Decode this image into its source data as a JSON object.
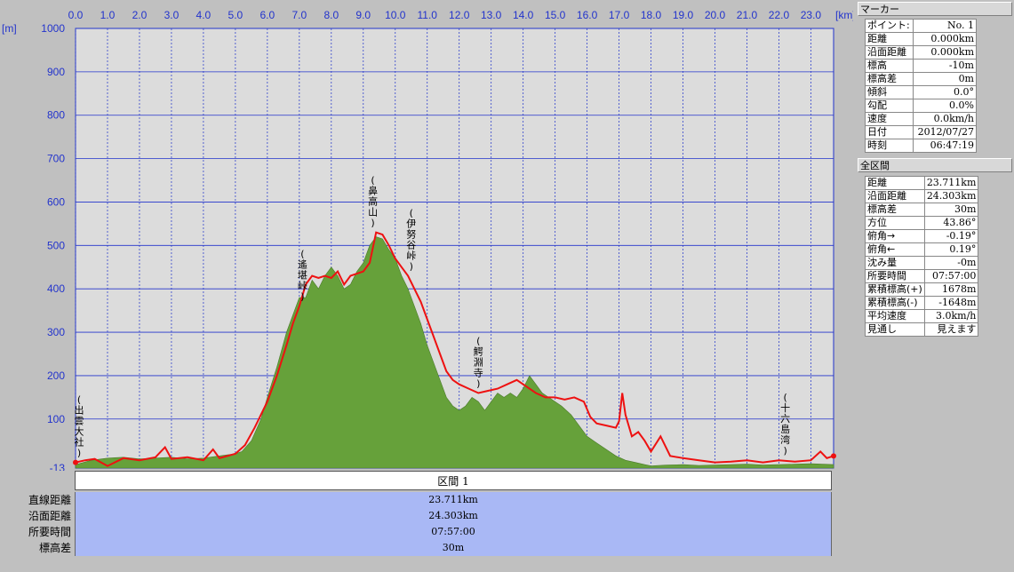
{
  "chart_data": {
    "type": "area",
    "x_unit": "[km]",
    "y_unit": "[m]",
    "xlim": [
      0,
      23.711
    ],
    "ylim": [
      -13,
      1000
    ],
    "x_ticks": [
      "0.0",
      "1.0",
      "2.0",
      "3.0",
      "4.0",
      "5.0",
      "6.0",
      "7.0",
      "8.0",
      "9.0",
      "10.0",
      "11.0",
      "12.0",
      "13.0",
      "14.0",
      "15.0",
      "16.0",
      "17.0",
      "18.0",
      "19.0",
      "20.0",
      "21.0",
      "22.0",
      "23.0"
    ],
    "y_ticks": [
      "1000",
      "900",
      "800",
      "700",
      "600",
      "500",
      "400",
      "300",
      "200",
      "100",
      "-13"
    ],
    "grid": true,
    "series": [
      {
        "color": "#66a13a",
        "x": [
          0,
          0.5,
          1,
          1.5,
          2,
          2.5,
          3,
          3.5,
          4,
          4.5,
          5,
          5.2,
          5.5,
          5.8,
          6,
          6.3,
          6.6,
          6.9,
          7,
          7.2,
          7.4,
          7.6,
          7.8,
          8,
          8.2,
          8.4,
          8.6,
          8.8,
          9,
          9.2,
          9.4,
          9.6,
          9.8,
          10,
          10.2,
          10.4,
          10.6,
          10.8,
          11,
          11.2,
          11.4,
          11.6,
          11.8,
          12,
          12.2,
          12.4,
          12.6,
          12.8,
          13,
          13.2,
          13.4,
          13.6,
          13.8,
          14,
          14.2,
          14.4,
          14.6,
          14.8,
          15,
          15.2,
          15.5,
          15.8,
          16,
          16.3,
          16.6,
          16.9,
          17.2,
          17.5,
          17.8,
          18,
          18.5,
          19,
          19.5,
          20,
          20.5,
          21,
          21.5,
          22,
          22.5,
          23,
          23.711
        ],
        "y": [
          -5,
          5,
          10,
          12,
          8,
          10,
          12,
          8,
          10,
          15,
          20,
          25,
          50,
          100,
          150,
          220,
          300,
          360,
          380,
          380,
          420,
          400,
          430,
          450,
          430,
          400,
          410,
          440,
          460,
          500,
          520,
          515,
          490,
          470,
          430,
          400,
          360,
          320,
          270,
          230,
          190,
          150,
          130,
          120,
          130,
          150,
          140,
          120,
          140,
          160,
          150,
          160,
          150,
          170,
          200,
          180,
          160,
          150,
          140,
          130,
          110,
          80,
          60,
          45,
          30,
          15,
          5,
          0,
          -5,
          -8,
          -6,
          -5,
          -7,
          -6,
          -5,
          -4,
          -6,
          -5,
          -4,
          -3,
          -5
        ]
      },
      {
        "color": "#ee1111",
        "x": [
          0,
          0.3,
          0.6,
          1,
          1.5,
          2,
          2.5,
          2.8,
          3,
          3.5,
          4,
          4.3,
          4.5,
          5,
          5.3,
          5.6,
          6,
          6.3,
          6.6,
          6.8,
          7,
          7.2,
          7.4,
          7.6,
          7.8,
          8,
          8.2,
          8.4,
          8.6,
          8.8,
          9,
          9.2,
          9.4,
          9.6,
          9.8,
          10,
          10.2,
          10.4,
          10.6,
          10.8,
          11,
          11.2,
          11.4,
          11.6,
          11.8,
          12,
          12.3,
          12.6,
          12.9,
          13.2,
          13.5,
          13.8,
          14.1,
          14.4,
          14.7,
          15,
          15.3,
          15.6,
          15.9,
          16.1,
          16.3,
          16.6,
          16.9,
          17,
          17.1,
          17.2,
          17.4,
          17.6,
          17.8,
          18,
          18.3,
          18.6,
          19,
          19.5,
          20,
          20.5,
          21,
          21.5,
          22,
          22.5,
          23,
          23.3,
          23.5,
          23.711
        ],
        "y": [
          0,
          5,
          8,
          -8,
          10,
          5,
          12,
          35,
          8,
          12,
          5,
          30,
          10,
          20,
          40,
          80,
          140,
          200,
          270,
          320,
          360,
          410,
          430,
          425,
          430,
          425,
          440,
          410,
          430,
          435,
          440,
          460,
          530,
          525,
          500,
          470,
          450,
          430,
          400,
          370,
          330,
          290,
          250,
          210,
          190,
          180,
          170,
          160,
          165,
          170,
          180,
          190,
          175,
          160,
          150,
          150,
          145,
          150,
          140,
          105,
          90,
          85,
          80,
          95,
          160,
          110,
          60,
          70,
          50,
          25,
          60,
          15,
          10,
          5,
          0,
          2,
          5,
          0,
          5,
          2,
          5,
          25,
          10,
          15
        ]
      }
    ],
    "annotations": [
      {
        "x": 0,
        "text": "出雲大社"
      },
      {
        "x": 7.1,
        "text": "遙堪峠"
      },
      {
        "x": 9.3,
        "text": "鼻高山"
      },
      {
        "x": 10.5,
        "text": "伊努谷峠"
      },
      {
        "x": 12.6,
        "text": "鰐淵寺"
      },
      {
        "x": 22.2,
        "text": "十六島湾"
      }
    ]
  },
  "section": {
    "tab_label": "区間 1",
    "rows": [
      {
        "label": "直線距離",
        "value": "23.711km"
      },
      {
        "label": "沿面距離",
        "value": "24.303km"
      },
      {
        "label": "所要時間",
        "value": "07:57:00"
      },
      {
        "label": "標高差",
        "value": "30m"
      }
    ]
  },
  "marker": {
    "header": "マーカー",
    "rows": [
      {
        "k": "ポイント:",
        "v": "No. 1"
      },
      {
        "k": "距離",
        "v": "0.000km"
      },
      {
        "k": "沿面距離",
        "v": "0.000km"
      },
      {
        "k": "標高",
        "v": "-10m"
      },
      {
        "k": "標高差",
        "v": "0m"
      },
      {
        "k": "傾斜",
        "v": "0.0°"
      },
      {
        "k": "勾配",
        "v": "0.0%"
      },
      {
        "k": "速度",
        "v": "0.0km/h"
      },
      {
        "k": "日付",
        "v": "2012/07/27"
      },
      {
        "k": "時刻",
        "v": "06:47:19"
      }
    ]
  },
  "total": {
    "header": "全区間",
    "rows": [
      {
        "k": "距離",
        "v": "23.711km"
      },
      {
        "k": "沿面距離",
        "v": "24.303km"
      },
      {
        "k": "標高差",
        "v": "30m"
      },
      {
        "k": "方位",
        "v": "43.86°"
      },
      {
        "k": "俯角→",
        "v": "-0.19°"
      },
      {
        "k": "俯角←",
        "v": "0.19°"
      },
      {
        "k": "沈み量",
        "v": "-0m"
      },
      {
        "k": "所要時間",
        "v": "07:57:00"
      },
      {
        "k": "累積標高(+)",
        "v": "1678m"
      },
      {
        "k": "累積標高(-)",
        "v": "-1648m"
      },
      {
        "k": "平均速度",
        "v": "3.0km/h"
      },
      {
        "k": "見通し",
        "v": "見えます"
      }
    ]
  }
}
